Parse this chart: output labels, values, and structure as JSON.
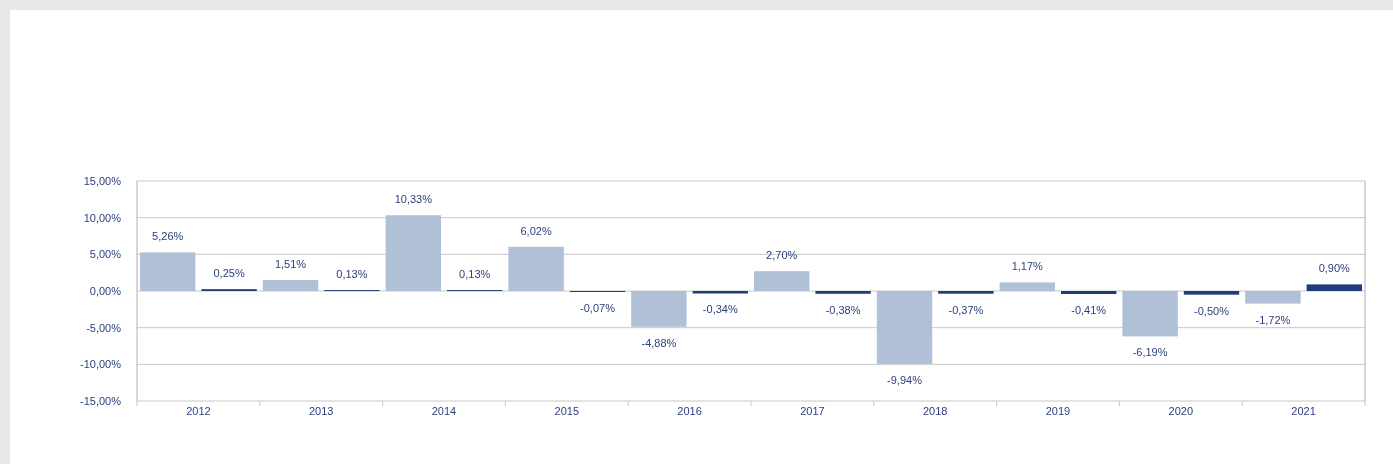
{
  "chart_data": {
    "type": "bar",
    "categories": [
      "2012",
      "2013",
      "2014",
      "2015",
      "2016",
      "2017",
      "2018",
      "2019",
      "2020",
      "2021"
    ],
    "series": [
      {
        "color": "#b0c0d6",
        "values": [
          5.26,
          1.51,
          10.33,
          6.02,
          -4.88,
          2.7,
          -9.94,
          1.17,
          -6.19,
          -1.72
        ],
        "value_labels": [
          "5,26%",
          "1,51%",
          "10,33%",
          "6,02%",
          "-4,88%",
          "2,70%",
          "-9,94%",
          "1,17%",
          "-6,19%",
          "-1,72%"
        ]
      },
      {
        "color": "#1f3d7a",
        "values": [
          0.25,
          0.13,
          0.13,
          -0.07,
          -0.34,
          -0.38,
          -0.37,
          -0.41,
          -0.5,
          0.9
        ],
        "value_labels": [
          "0,25%",
          "0,13%",
          "0,13%",
          "-0,07%",
          "-0,34%",
          "-0,38%",
          "-0,37%",
          "-0,41%",
          "-0,50%",
          "0,90%"
        ]
      }
    ],
    "ylim": [
      -15,
      15
    ],
    "yticks": [
      {
        "value": -15,
        "label": "-15,00%"
      },
      {
        "value": -10,
        "label": "-10,00%"
      },
      {
        "value": -5,
        "label": "-5,00%"
      },
      {
        "value": 0,
        "label": "0,00%"
      },
      {
        "value": 5,
        "label": "5,00%"
      },
      {
        "value": 10,
        "label": "10,00%"
      },
      {
        "value": 15,
        "label": "15,00%"
      }
    ],
    "grid": "y"
  }
}
